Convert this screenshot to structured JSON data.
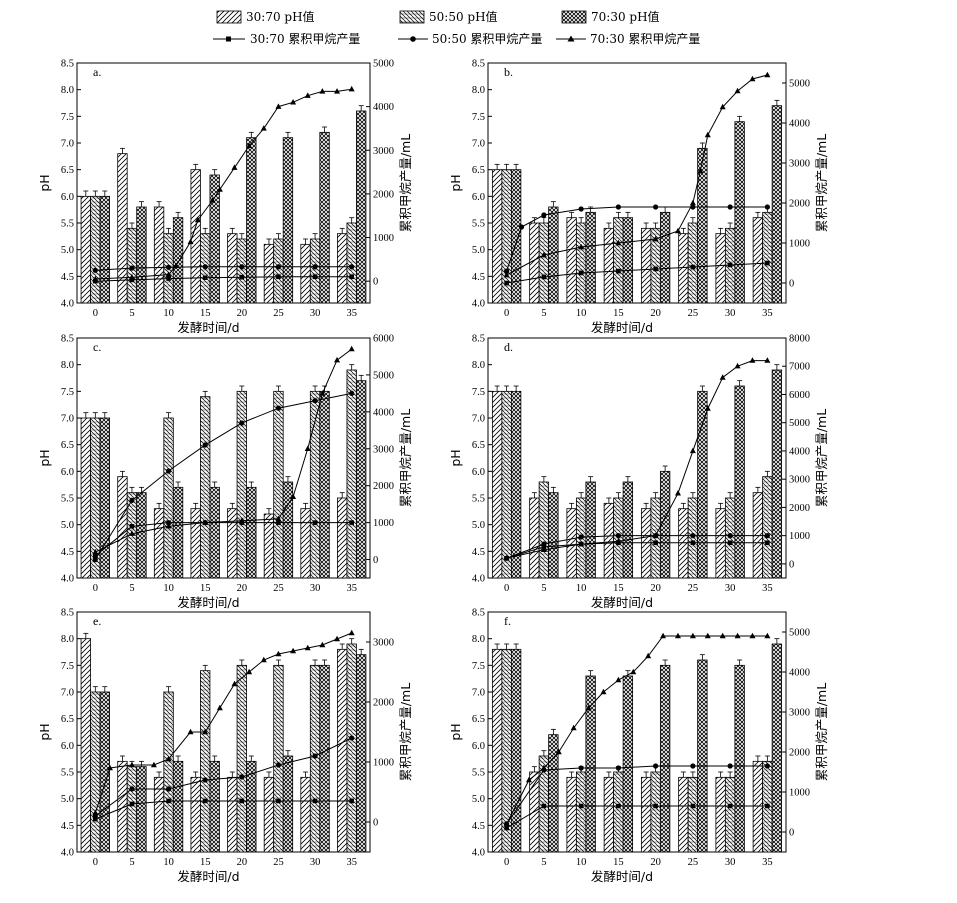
{
  "legend": {
    "ph_30_70": "30:70 pH值",
    "ph_50_50": "50:50 pH值",
    "ph_70_30": "70:30 pH值",
    "cm_30_70": "30:70 累积甲烷产量",
    "cm_50_50": "50:50 累积甲烷产量",
    "cm_70_30": "70:30 累积甲烷产量"
  },
  "colors": {
    "ink": "#000000",
    "background": "#ffffff"
  },
  "chart_data": [
    {
      "type": "bar",
      "panel_label": "a.",
      "xlabel": "发酵时间/d",
      "ylabel": "pH",
      "y2label": "累积甲烷产量/mL",
      "ylim": [
        4.0,
        8.5
      ],
      "y2lim": [
        -500,
        5000
      ],
      "yticks": [
        "4.0",
        "4.5",
        "5.0",
        "5.5",
        "6.0",
        "6.5",
        "7.0",
        "7.5",
        "8.0",
        "8.5"
      ],
      "y2ticks": [
        "0",
        "1000",
        "2000",
        "3000",
        "4000",
        "5000"
      ],
      "categories": [
        "0",
        "5",
        "10",
        "15",
        "20",
        "25",
        "30",
        "35"
      ],
      "ph_series": [
        {
          "name": "30:70 pH值",
          "values": [
            6.0,
            6.8,
            5.8,
            6.5,
            5.3,
            5.1,
            5.1,
            5.3
          ]
        },
        {
          "name": "50:50 pH值",
          "values": [
            6.0,
            5.4,
            5.3,
            5.3,
            5.2,
            5.2,
            5.2,
            5.5
          ]
        },
        {
          "name": "70:30 pH值",
          "values": [
            6.0,
            5.8,
            5.6,
            6.4,
            7.1,
            7.1,
            7.2,
            7.6
          ]
        }
      ],
      "methane_series": [
        {
          "name": "30:70 累积甲烷产量",
          "x": [
            0,
            5,
            10,
            15,
            20,
            25,
            30,
            35
          ],
          "values": [
            0,
            30,
            60,
            80,
            90,
            100,
            100,
            100
          ]
        },
        {
          "name": "50:50 累积甲烷产量",
          "x": [
            0,
            5,
            10,
            15,
            20,
            25,
            30,
            35
          ],
          "values": [
            250,
            300,
            320,
            330,
            330,
            330,
            330,
            330
          ]
        },
        {
          "name": "70:30 累积甲烷产量",
          "x": [
            0,
            5,
            10,
            11,
            13,
            14,
            16,
            17,
            19,
            21,
            23,
            25,
            27,
            29,
            31,
            33,
            35
          ],
          "values": [
            50,
            90,
            150,
            350,
            900,
            1400,
            1850,
            2100,
            2600,
            3100,
            3500,
            4000,
            4100,
            4250,
            4350,
            4350,
            4400
          ]
        }
      ]
    },
    {
      "type": "bar",
      "panel_label": "b.",
      "xlabel": "发酵时间/d",
      "ylabel": "pH",
      "y2label": "累积甲烷产量/mL",
      "ylim": [
        4.0,
        8.5
      ],
      "y2lim": [
        -500,
        5500
      ],
      "yticks": [
        "4.0",
        "4.5",
        "5.0",
        "5.5",
        "6.0",
        "6.5",
        "7.0",
        "7.5",
        "8.0",
        "8.5"
      ],
      "y2ticks": [
        "0",
        "1000",
        "2000",
        "3000",
        "4000",
        "5000"
      ],
      "categories": [
        "0",
        "5",
        "10",
        "15",
        "20",
        "25",
        "30",
        "35"
      ],
      "ph_series": [
        {
          "name": "30:70 pH值",
          "values": [
            6.5,
            5.5,
            5.6,
            5.4,
            5.4,
            5.3,
            5.3,
            5.6
          ]
        },
        {
          "name": "50:50 pH值",
          "values": [
            6.5,
            5.5,
            5.5,
            5.6,
            5.4,
            5.5,
            5.4,
            5.7
          ]
        },
        {
          "name": "70:30 pH值",
          "values": [
            6.5,
            5.8,
            5.7,
            5.6,
            5.7,
            6.9,
            7.4,
            7.7
          ]
        }
      ],
      "methane_series": [
        {
          "name": "30:70 累积甲烷产量",
          "x": [
            0,
            5,
            10,
            15,
            20,
            25,
            30,
            35
          ],
          "values": [
            0,
            150,
            250,
            300,
            350,
            400,
            450,
            500
          ]
        },
        {
          "name": "50:50 累积甲烷产量",
          "x": [
            0,
            2,
            5,
            10,
            15,
            20,
            25,
            30,
            35
          ],
          "values": [
            300,
            1400,
            1700,
            1850,
            1900,
            1900,
            1900,
            1900,
            1900
          ]
        },
        {
          "name": "70:30 累积甲烷产量",
          "x": [
            0,
            5,
            10,
            15,
            20,
            23,
            25,
            26,
            27,
            29,
            31,
            33,
            35
          ],
          "values": [
            200,
            700,
            900,
            1000,
            1100,
            1300,
            2000,
            2800,
            3700,
            4400,
            4800,
            5100,
            5200
          ]
        }
      ]
    },
    {
      "type": "bar",
      "panel_label": "c.",
      "xlabel": "发酵时间/d",
      "ylabel": "pH",
      "y2label": "累积甲烷产量/mL",
      "ylim": [
        4.0,
        8.5
      ],
      "y2lim": [
        -500,
        6000
      ],
      "yticks": [
        "4.0",
        "4.5",
        "5.0",
        "5.5",
        "6.0",
        "6.5",
        "7.0",
        "7.5",
        "8.0",
        "8.5"
      ],
      "y2ticks": [
        "0",
        "1000",
        "2000",
        "3000",
        "4000",
        "5000",
        "6000"
      ],
      "categories": [
        "0",
        "5",
        "10",
        "15",
        "20",
        "25",
        "30",
        "35"
      ],
      "ph_series": [
        {
          "name": "30:70 pH值",
          "values": [
            7.0,
            5.9,
            5.3,
            5.3,
            5.3,
            5.2,
            5.3,
            5.5
          ]
        },
        {
          "name": "50:50 pH值",
          "values": [
            7.0,
            5.6,
            7.0,
            7.4,
            7.5,
            7.5,
            7.5,
            7.9
          ]
        },
        {
          "name": "70:30 pH值",
          "values": [
            7.0,
            5.6,
            5.7,
            5.7,
            5.7,
            5.8,
            7.5,
            7.7
          ]
        }
      ],
      "methane_series": [
        {
          "name": "30:70 累积甲烷产量",
          "x": [
            0,
            5,
            10,
            15,
            20,
            25,
            30,
            35
          ],
          "values": [
            100,
            900,
            1000,
            1000,
            1000,
            1000,
            1000,
            1000
          ]
        },
        {
          "name": "50:50 累积甲烷产量",
          "x": [
            0,
            5,
            10,
            15,
            20,
            25,
            30,
            35
          ],
          "values": [
            0,
            1600,
            2400,
            3100,
            3700,
            4100,
            4300,
            4500
          ]
        },
        {
          "name": "70:30 累积甲烷产量",
          "x": [
            0,
            5,
            10,
            15,
            20,
            25,
            27,
            29,
            31,
            33,
            35
          ],
          "values": [
            200,
            700,
            900,
            1000,
            1050,
            1100,
            1700,
            3000,
            4500,
            5400,
            5700
          ]
        }
      ]
    },
    {
      "type": "bar",
      "panel_label": "d.",
      "xlabel": "发酵时间/d",
      "ylabel": "pH",
      "y2label": "累积甲烷产量/mL",
      "ylim": [
        4.0,
        8.5
      ],
      "y2lim": [
        -500,
        8000
      ],
      "yticks": [
        "4.0",
        "4.5",
        "5.0",
        "5.5",
        "6.0",
        "6.5",
        "7.0",
        "7.5",
        "8.0",
        "8.5"
      ],
      "y2ticks": [
        "0",
        "1000",
        "2000",
        "3000",
        "4000",
        "5000",
        "6000",
        "7000",
        "8000"
      ],
      "categories": [
        "0",
        "5",
        "10",
        "15",
        "20",
        "25",
        "30",
        "35"
      ],
      "ph_series": [
        {
          "name": "30:70 pH值",
          "values": [
            7.5,
            5.5,
            5.3,
            5.4,
            5.3,
            5.3,
            5.3,
            5.6
          ]
        },
        {
          "name": "50:50 pH值",
          "values": [
            7.5,
            5.8,
            5.5,
            5.5,
            5.5,
            5.5,
            5.5,
            5.9
          ]
        },
        {
          "name": "70:30 pH值",
          "values": [
            7.5,
            5.6,
            5.8,
            5.8,
            6.0,
            7.5,
            7.6,
            7.9
          ]
        }
      ],
      "methane_series": [
        {
          "name": "30:70 累积甲烷产量",
          "x": [
            0,
            5,
            10,
            15,
            20,
            25,
            30,
            35
          ],
          "values": [
            200,
            600,
            700,
            750,
            750,
            750,
            750,
            750
          ]
        },
        {
          "name": "50:50 累积甲烷产量",
          "x": [
            0,
            5,
            10,
            15,
            20,
            25,
            30,
            35
          ],
          "values": [
            200,
            700,
            950,
            1000,
            1000,
            1000,
            1000,
            1000
          ]
        },
        {
          "name": "70:30 累积甲烷产量",
          "x": [
            0,
            5,
            10,
            15,
            20,
            23,
            25,
            27,
            29,
            31,
            33,
            35
          ],
          "values": [
            200,
            500,
            700,
            800,
            1000,
            2500,
            4000,
            5500,
            6600,
            7000,
            7200,
            7200
          ]
        }
      ]
    },
    {
      "type": "bar",
      "panel_label": "e.",
      "xlabel": "发酵时间/d",
      "ylabel": "pH",
      "y2label": "累积甲烷产量/mL",
      "ylim": [
        4.0,
        8.5
      ],
      "y2lim": [
        -500,
        3500
      ],
      "yticks": [
        "4.0",
        "4.5",
        "5.0",
        "5.5",
        "6.0",
        "6.5",
        "7.0",
        "7.5",
        "8.0",
        "8.5"
      ],
      "y2ticks": [
        "0",
        "1000",
        "2000",
        "3000"
      ],
      "categories": [
        "0",
        "5",
        "10",
        "15",
        "20",
        "25",
        "30",
        "35"
      ],
      "ph_series": [
        {
          "name": "30:70 pH值",
          "values": [
            8.0,
            5.7,
            5.4,
            5.4,
            5.4,
            5.4,
            5.4,
            7.8
          ]
        },
        {
          "name": "50:50 pH值",
          "values": [
            7.0,
            5.6,
            7.0,
            7.4,
            7.5,
            7.5,
            7.5,
            7.9
          ]
        },
        {
          "name": "70:30 pH值",
          "values": [
            7.0,
            5.6,
            5.7,
            5.7,
            5.7,
            5.8,
            7.5,
            7.7
          ]
        }
      ],
      "methane_series": [
        {
          "name": "30:70 累积甲烷产量",
          "x": [
            0,
            5,
            10,
            15,
            20,
            25,
            30,
            35
          ],
          "values": [
            50,
            300,
            350,
            350,
            350,
            350,
            350,
            350
          ]
        },
        {
          "name": "50:50 累积甲烷产量",
          "x": [
            0,
            5,
            10,
            15,
            20,
            25,
            30,
            35
          ],
          "values": [
            100,
            550,
            550,
            700,
            750,
            950,
            1100,
            1400
          ]
        },
        {
          "name": "70:30 累积甲烷产量",
          "x": [
            0,
            2,
            5,
            8,
            10,
            13,
            15,
            17,
            19,
            21,
            23,
            25,
            27,
            29,
            31,
            33,
            35
          ],
          "values": [
            150,
            900,
            950,
            950,
            1050,
            1500,
            1500,
            1900,
            2300,
            2500,
            2700,
            2800,
            2850,
            2900,
            2950,
            3050,
            3150
          ]
        }
      ]
    },
    {
      "type": "bar",
      "panel_label": "f.",
      "xlabel": "发酵时间/d",
      "ylabel": "pH",
      "y2label": "累积甲烷产量/mL",
      "ylim": [
        4.0,
        8.5
      ],
      "y2lim": [
        -500,
        5500
      ],
      "yticks": [
        "4.0",
        "4.5",
        "5.0",
        "5.5",
        "6.0",
        "6.5",
        "7.0",
        "7.5",
        "8.0",
        "8.5"
      ],
      "y2ticks": [
        "0",
        "1000",
        "2000",
        "3000",
        "4000",
        "5000"
      ],
      "categories": [
        "0",
        "5",
        "10",
        "15",
        "20",
        "25",
        "30",
        "35"
      ],
      "ph_series": [
        {
          "name": "30:70 pH值",
          "values": [
            7.8,
            5.5,
            5.4,
            5.4,
            5.4,
            5.4,
            5.4,
            5.7
          ]
        },
        {
          "name": "50:50 pH值",
          "values": [
            7.8,
            5.8,
            5.5,
            5.5,
            5.5,
            5.4,
            5.4,
            5.7
          ]
        },
        {
          "name": "70:30 pH值",
          "values": [
            7.8,
            6.2,
            7.3,
            7.3,
            7.5,
            7.6,
            7.5,
            7.9
          ]
        }
      ],
      "methane_series": [
        {
          "name": "30:70 累积甲烷产量",
          "x": [
            0,
            5,
            10,
            15,
            20,
            25,
            30,
            35
          ],
          "values": [
            100,
            650,
            650,
            650,
            650,
            650,
            650,
            650
          ]
        },
        {
          "name": "50:50 累积甲烷产量",
          "x": [
            0,
            5,
            10,
            15,
            20,
            25,
            30,
            35
          ],
          "values": [
            200,
            1550,
            1600,
            1600,
            1650,
            1650,
            1650,
            1650
          ]
        },
        {
          "name": "70:30 累积甲烷产量",
          "x": [
            0,
            3,
            5,
            7,
            9,
            11,
            13,
            15,
            17,
            19,
            21,
            23,
            25,
            27,
            29,
            31,
            33,
            35
          ],
          "values": [
            200,
            1300,
            1600,
            2000,
            2600,
            3100,
            3500,
            3800,
            4000,
            4400,
            4900,
            4900,
            4900,
            4900,
            4900,
            4900,
            4900,
            4900
          ]
        }
      ]
    }
  ]
}
